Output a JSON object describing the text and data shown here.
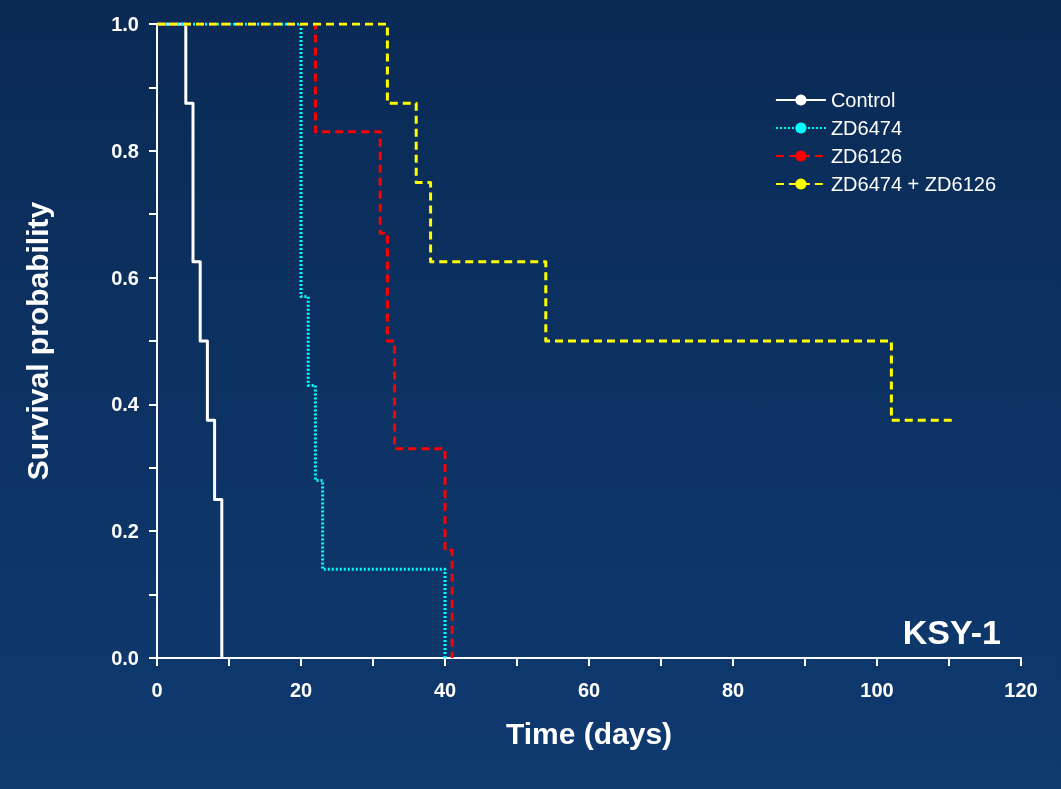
{
  "chart_data": {
    "type": "step",
    "xlabel": "Time (days)",
    "ylabel": "Survival probability",
    "xlim": [
      0,
      120
    ],
    "ylim": [
      0,
      1
    ],
    "xticks": [
      0,
      {
        "value": 10,
        "label": null
      },
      20,
      {
        "value": 30,
        "label": null
      },
      40,
      {
        "value": 50,
        "label": null
      },
      60,
      {
        "value": 70,
        "label": null
      },
      80,
      {
        "value": 90,
        "label": null
      },
      100,
      {
        "value": 110,
        "label": null
      },
      120
    ],
    "yticks": [
      {
        "value": 0,
        "label": "0.0"
      },
      {
        "value": 0.1,
        "label": null
      },
      {
        "value": 0.2,
        "label": "0.2"
      },
      {
        "value": 0.3,
        "label": null
      },
      {
        "value": 0.4,
        "label": "0.4"
      },
      {
        "value": 0.5,
        "label": null
      },
      {
        "value": 0.6,
        "label": "0.6"
      },
      {
        "value": 0.7,
        "label": null
      },
      {
        "value": 0.8,
        "label": "0.8"
      },
      {
        "value": 0.9,
        "label": null
      },
      {
        "value": 1,
        "label": "1.0"
      }
    ],
    "grid": false,
    "legend": "top right",
    "marker": "none",
    "annotations": [
      "KSY-1"
    ],
    "series": [
      {
        "name": "Control",
        "color": "#ffffff",
        "line_style": "solid",
        "x": [
          0,
          4,
          5,
          6,
          7,
          8,
          9
        ],
        "values": [
          1,
          0.875,
          0.625,
          0.5,
          0.375,
          0.25,
          0
        ]
      },
      {
        "name": "ZD6474",
        "color": "#00ffff",
        "line_style": "dotted",
        "x": [
          0,
          20,
          21,
          22,
          23,
          40
        ],
        "values": [
          1,
          0.57,
          0.43,
          0.28,
          0.14,
          0
        ]
      },
      {
        "name": "ZD6126",
        "color": "#ff0000",
        "line_style": "dashed",
        "x": [
          0,
          22,
          31,
          32,
          33,
          40,
          41
        ],
        "values": [
          1,
          0.83,
          0.67,
          0.5,
          0.33,
          0.17,
          0
        ]
      },
      {
        "name": "ZD6474 + ZD6126",
        "color": "#ffff00",
        "line_style": "dashed",
        "x": [
          0,
          32,
          36,
          38,
          54,
          102,
          111
        ],
        "values": [
          1,
          0.875,
          0.75,
          0.625,
          0.5,
          0.375,
          0.375
        ]
      }
    ]
  }
}
